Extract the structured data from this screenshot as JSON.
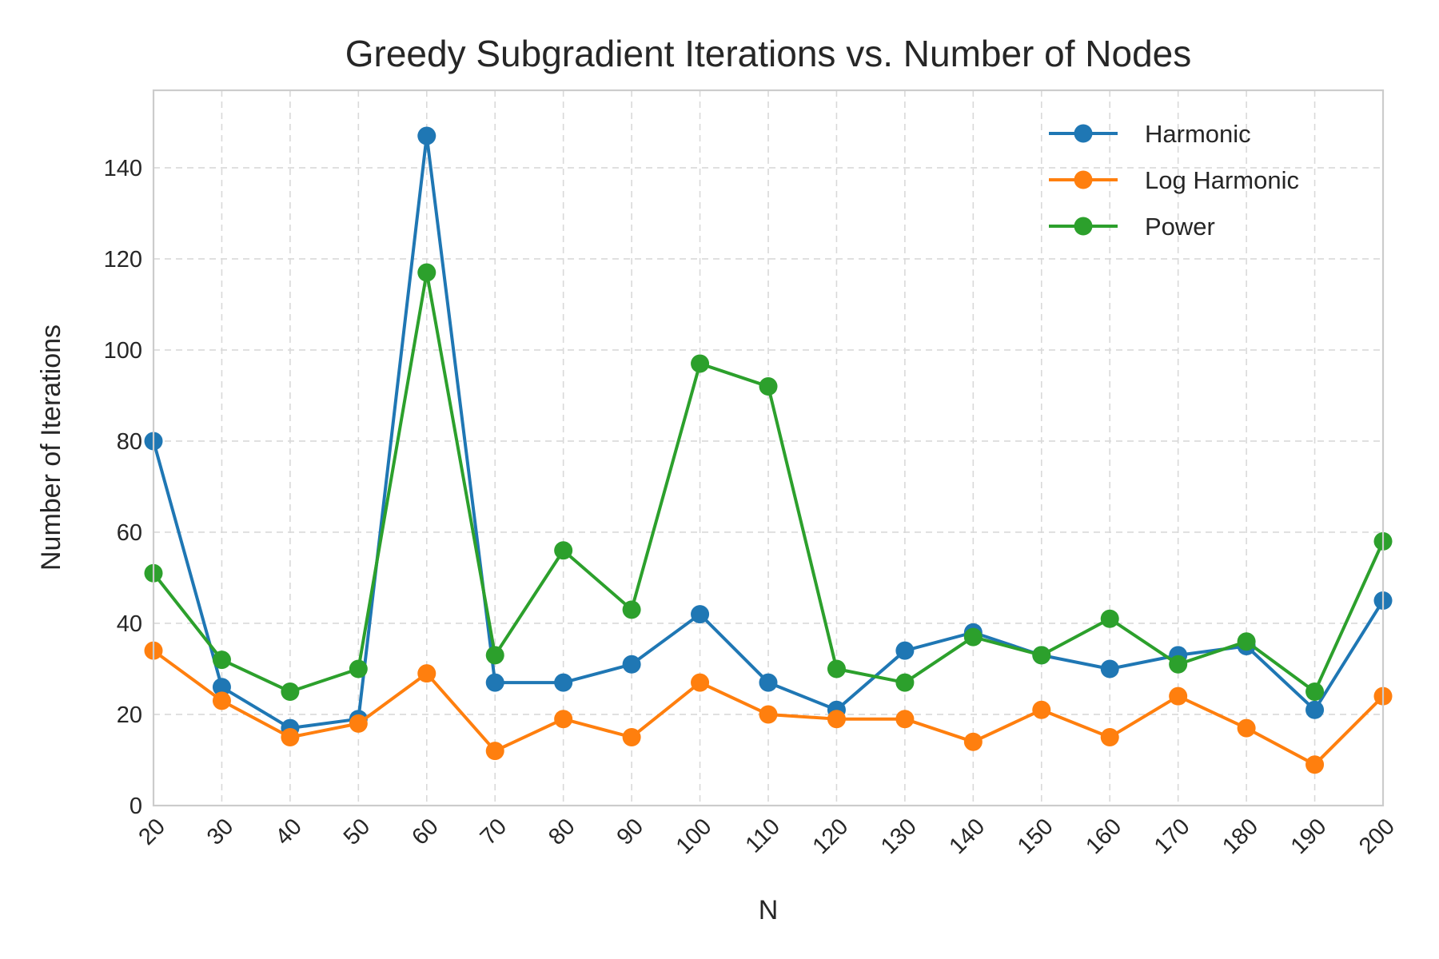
{
  "chart_data": {
    "type": "line",
    "title": "Greedy Subgradient Iterations vs. Number of Nodes",
    "xlabel": "N",
    "ylabel": "Number of Iterations",
    "x": [
      20,
      30,
      40,
      50,
      60,
      70,
      80,
      90,
      100,
      110,
      120,
      130,
      140,
      150,
      160,
      170,
      180,
      190,
      200
    ],
    "xlim": [
      20,
      200
    ],
    "ylim": [
      0,
      157
    ],
    "yticks": [
      0,
      20,
      40,
      60,
      80,
      100,
      120,
      140
    ],
    "grid": true,
    "legend_position": "top-right",
    "series": [
      {
        "name": "Harmonic",
        "color": "#1f77b4",
        "marker": "circle",
        "values": [
          80,
          26,
          17,
          19,
          147,
          27,
          27,
          31,
          42,
          27,
          21,
          34,
          38,
          33,
          30,
          33,
          35,
          21,
          45
        ]
      },
      {
        "name": "Log Harmonic",
        "color": "#ff7f0e",
        "marker": "circle",
        "values": [
          34,
          23,
          15,
          18,
          29,
          12,
          19,
          15,
          27,
          20,
          19,
          19,
          14,
          21,
          15,
          24,
          17,
          9,
          24
        ]
      },
      {
        "name": "Power",
        "color": "#2ca02c",
        "marker": "circle",
        "values": [
          51,
          32,
          25,
          30,
          117,
          33,
          56,
          43,
          97,
          92,
          30,
          27,
          37,
          33,
          41,
          31,
          36,
          25,
          58
        ]
      }
    ]
  }
}
